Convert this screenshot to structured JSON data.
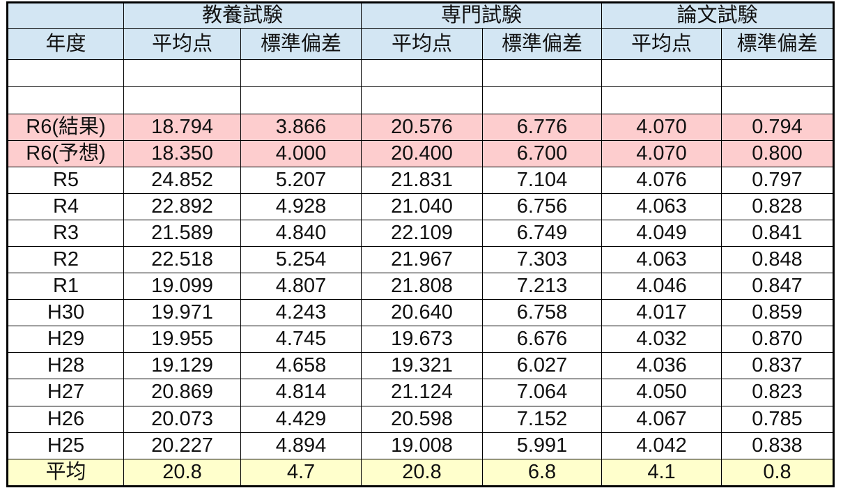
{
  "chart_data": {
    "type": "table",
    "corner_label": "",
    "column_groups": [
      "教養試験",
      "専門試験",
      "論文試験"
    ],
    "columns": [
      "年度",
      "平均点",
      "標準偏差",
      "平均点",
      "標準偏差",
      "平均点",
      "標準偏差"
    ],
    "empty_row_count": 2,
    "rows": [
      {
        "year": "R6(結果)",
        "highlight": "pink",
        "values": [
          "18.794",
          "3.866",
          "20.576",
          "6.776",
          "4.070",
          "0.794"
        ]
      },
      {
        "year": "R6(予想)",
        "highlight": "pink",
        "values": [
          "18.350",
          "4.000",
          "20.400",
          "6.700",
          "4.070",
          "0.800"
        ]
      },
      {
        "year": "R5",
        "highlight": "none",
        "values": [
          "24.852",
          "5.207",
          "21.831",
          "7.104",
          "4.076",
          "0.797"
        ]
      },
      {
        "year": "R4",
        "highlight": "none",
        "values": [
          "22.892",
          "4.928",
          "21.040",
          "6.756",
          "4.063",
          "0.828"
        ]
      },
      {
        "year": "R3",
        "highlight": "none",
        "values": [
          "21.589",
          "4.840",
          "22.109",
          "6.749",
          "4.049",
          "0.841"
        ]
      },
      {
        "year": "R2",
        "highlight": "none",
        "values": [
          "22.518",
          "5.254",
          "21.967",
          "7.303",
          "4.063",
          "0.848"
        ]
      },
      {
        "year": "R1",
        "highlight": "none",
        "values": [
          "19.099",
          "4.807",
          "21.808",
          "7.213",
          "4.046",
          "0.847"
        ]
      },
      {
        "year": "H30",
        "highlight": "none",
        "values": [
          "19.971",
          "4.243",
          "20.640",
          "6.758",
          "4.017",
          "0.859"
        ]
      },
      {
        "year": "H29",
        "highlight": "none",
        "values": [
          "19.955",
          "4.745",
          "19.673",
          "6.676",
          "4.032",
          "0.870"
        ]
      },
      {
        "year": "H28",
        "highlight": "none",
        "values": [
          "19.129",
          "4.658",
          "19.321",
          "6.027",
          "4.036",
          "0.837"
        ]
      },
      {
        "year": "H27",
        "highlight": "none",
        "values": [
          "20.869",
          "4.814",
          "21.124",
          "7.064",
          "4.050",
          "0.823"
        ]
      },
      {
        "year": "H26",
        "highlight": "none",
        "values": [
          "20.073",
          "4.429",
          "20.598",
          "7.152",
          "4.067",
          "0.785"
        ]
      },
      {
        "year": "H25",
        "highlight": "none",
        "values": [
          "20.227",
          "4.894",
          "19.008",
          "5.991",
          "4.042",
          "0.838"
        ]
      },
      {
        "year": "平均",
        "highlight": "yellow",
        "values": [
          "20.8",
          "4.7",
          "20.8",
          "6.8",
          "4.1",
          "0.8"
        ]
      }
    ]
  },
  "style": {
    "header_bg": "#d3e6f3",
    "pink_highlight_bg": "#fdcdce",
    "yellow_highlight_bg": "#ffffcc",
    "border_color": "#000000"
  }
}
